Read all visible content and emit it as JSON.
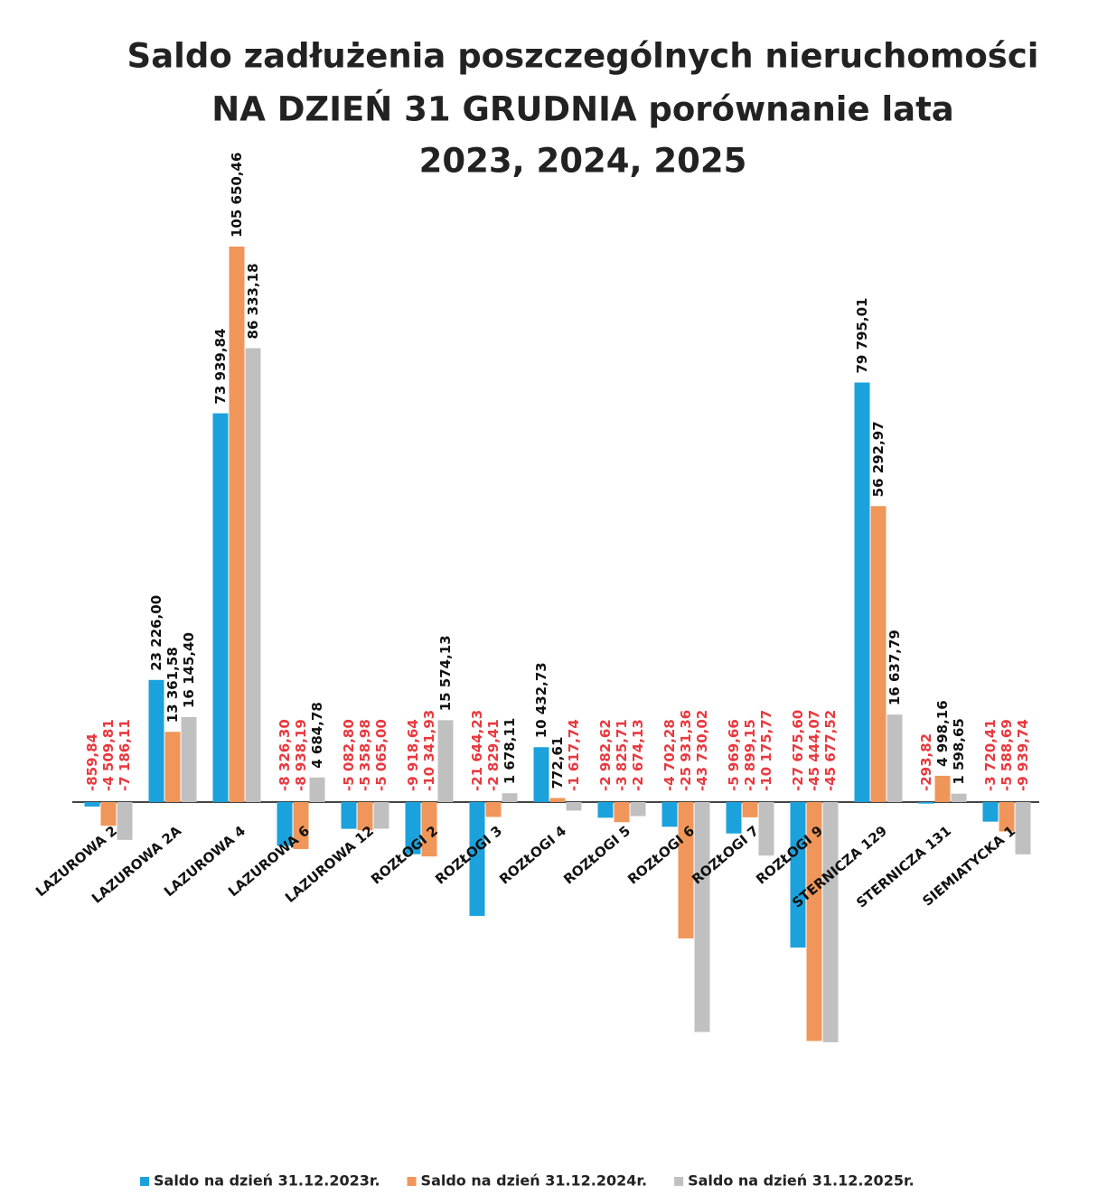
{
  "chart_data": {
    "type": "bar",
    "title": [
      "Saldo zadłużenia poszczególnych nieruchomości",
      "NA DZIEŃ 31 GRUDNIA porównanie lata",
      "2023, 2024, 2025"
    ],
    "categories": [
      "LAZUROWA 2",
      "LAZUROWA 2A",
      "LAZUROWA 4",
      "LAZUROWA 6",
      "LAZUROWA 12",
      "ROZŁOGI 2",
      "ROZŁOGI 3",
      "ROZŁOGI 4",
      "ROZŁOGI 5",
      "ROZŁOGI 6",
      "ROZŁOGI 7",
      "ROZŁOGI 9",
      "STERNICZA 129",
      "STERNICZA 131",
      "SIEMIATYCKA 1"
    ],
    "series": [
      {
        "name": "Saldo na dzień 31.12.2023r.",
        "color": "#1ba1dc",
        "values": [
          -859.84,
          23226.0,
          73939.84,
          -8326.3,
          -5082.8,
          -9918.64,
          -21644.23,
          10432.73,
          -2982.62,
          -4702.28,
          -5969.66,
          -27675.6,
          79795.01,
          -293.82,
          -3720.41
        ],
        "value_labels": [
          "-859,84",
          "23 226,00",
          "73 939,84",
          "-8 326,30",
          "-5 082,80",
          "-9 918,64",
          "-21 644,23",
          "10 432,73",
          "-2 982,62",
          "-4 702,28",
          "-5 969,66",
          "-27 675,60",
          "79 795,01",
          "-293,82",
          "-3 720,41"
        ]
      },
      {
        "name": "Saldo na dzień 31.12.2024r.",
        "color": "#f0965a",
        "values": [
          -4509.81,
          13361.58,
          105650.46,
          -8938.19,
          -5358.98,
          -10341.93,
          -2829.41,
          772.61,
          -3825.71,
          -25931.36,
          -2899.15,
          -45444.07,
          56292.97,
          4998.16,
          -5588.69
        ],
        "value_labels": [
          "-4 509,81",
          "13 361,58",
          "105 650,46",
          "-8 938,19",
          "-5 358,98",
          "-10 341,93",
          "-2 829,41",
          "772,61",
          "-3 825,71",
          "-25 931,36",
          "-2 899,15",
          "-45 444,07",
          "56 292,97",
          "4 998,16",
          "-5 588,69"
        ]
      },
      {
        "name": "Saldo na dzień 31.12.2025r.",
        "color": "#c0c0c0",
        "values": [
          -7186.11,
          16145.4,
          86333.18,
          4684.78,
          -5065.0,
          15574.13,
          1678.11,
          -1617.74,
          -2674.13,
          -43730.02,
          -10175.77,
          -45677.52,
          16637.79,
          1598.65,
          -9939.74
        ],
        "value_labels": [
          "-7 186,11",
          "16 145,40",
          "86 333,18",
          "4 684,78",
          "-5 065,00",
          "15 574,13",
          "1 678,11",
          "-1 617,74",
          "-2 674,13",
          "-43 730,02",
          "-10 175,77",
          "-45 677,52",
          "16 637,79",
          "1 598,65",
          "-9 939,74"
        ]
      }
    ]
  }
}
